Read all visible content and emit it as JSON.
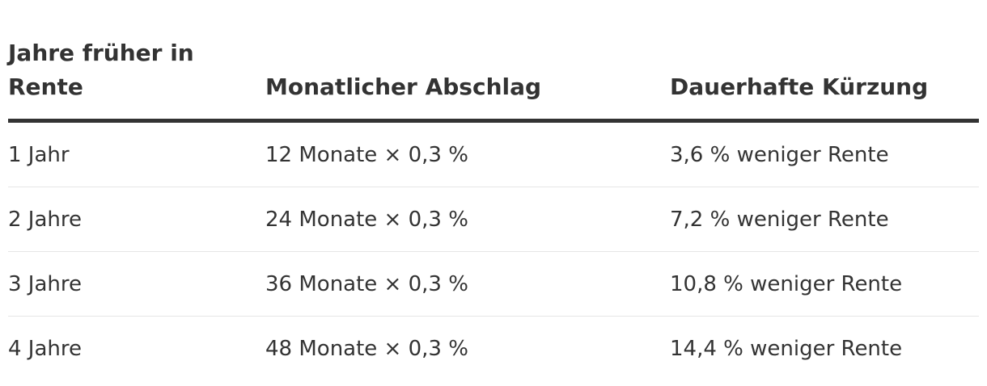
{
  "table": {
    "headers": [
      "Jahre früher in Rente",
      "Monatlicher Abschlag",
      "Dauerhafte Kürzung"
    ],
    "rows": [
      [
        "1 Jahr",
        "12 Monate × 0,3 %",
        "3,6 % weniger Rente"
      ],
      [
        "2 Jahre",
        "24 Monate × 0,3 %",
        "7,2 % weniger Rente"
      ],
      [
        "3 Jahre",
        "36 Monate × 0,3 %",
        "10,8 % weniger Rente"
      ],
      [
        "4 Jahre",
        "48 Monate × 0,3 %",
        "14,4 % weniger Rente"
      ]
    ]
  }
}
